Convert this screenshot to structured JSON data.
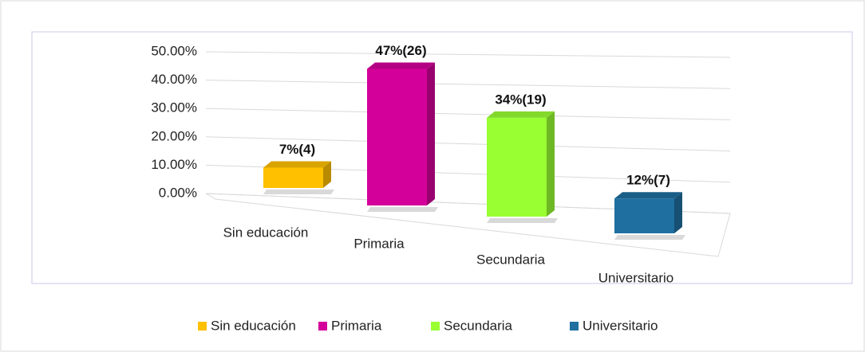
{
  "chart_data": {
    "type": "bar3d",
    "categories": [
      "Sin educación",
      "Primaria",
      "Secundaria",
      "Universitario"
    ],
    "values": [
      7,
      47,
      34,
      12
    ],
    "value_labels": [
      "7%(4)",
      "47%(26)",
      "34%(19)",
      "12%(7)"
    ],
    "colors": [
      "#FFC000",
      "#D4009A",
      "#99FF33",
      "#1F6FA0"
    ],
    "ylim": [
      0,
      50
    ],
    "yticks": [
      {
        "value": 0,
        "label": "0.00%"
      },
      {
        "value": 10,
        "label": "10.00%"
      },
      {
        "value": 20,
        "label": "20.00%"
      },
      {
        "value": 30,
        "label": "30.00%"
      },
      {
        "value": 40,
        "label": "40.00%"
      },
      {
        "value": 50,
        "label": "50.00%"
      }
    ],
    "grid": true,
    "legend": "bottom"
  }
}
